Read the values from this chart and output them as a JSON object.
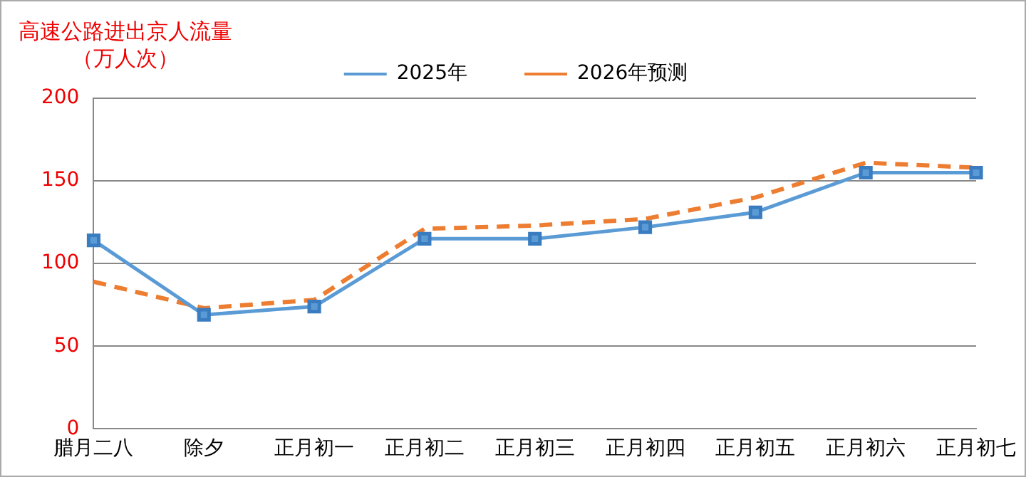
{
  "chart_data": {
    "type": "line",
    "title": "高速公路进出京人流量",
    "subtitle": "（万人次）",
    "categories": [
      "腊月二八",
      "除夕",
      "正月初一",
      "正月初二",
      "正月初三",
      "正月初四",
      "正月初五",
      "正月初六",
      "正月初七"
    ],
    "series": [
      {
        "name": "2025年",
        "color": "#5b9bd5",
        "marker": "square",
        "line_style": "solid",
        "values": [
          114,
          69,
          74,
          115,
          115,
          122,
          131,
          155,
          155
        ]
      },
      {
        "name": "2026年预测",
        "color": "#ed7d31",
        "marker": "none",
        "line_style": "dashed",
        "values": [
          89,
          73,
          78,
          121,
          123,
          127,
          140,
          161,
          158
        ]
      }
    ],
    "ylim": [
      0,
      200
    ],
    "yticks": [
      0,
      50,
      100,
      150,
      200
    ],
    "grid": "y",
    "legend": "top"
  }
}
